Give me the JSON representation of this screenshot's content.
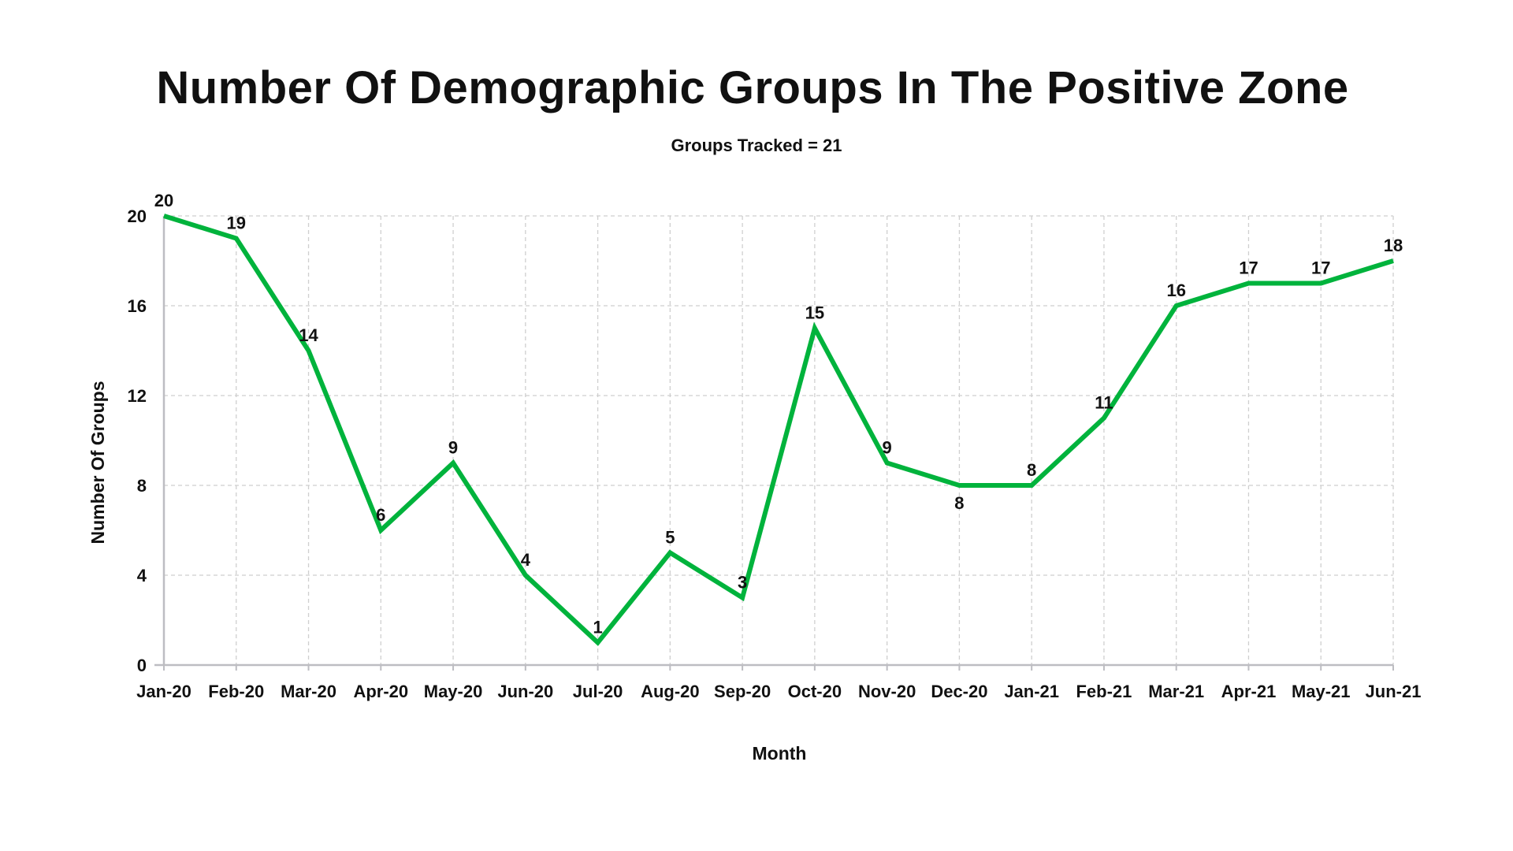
{
  "chart_data": {
    "type": "line",
    "title": "Number Of Demographic Groups In The Positive Zone",
    "subtitle": "Groups Tracked = 21",
    "xlabel": "Month",
    "ylabel": "Number Of Groups",
    "categories": [
      "Jan-20",
      "Feb-20",
      "Mar-20",
      "Apr-20",
      "May-20",
      "Jun-20",
      "Jul-20",
      "Aug-20",
      "Sep-20",
      "Oct-20",
      "Nov-20",
      "Dec-20",
      "Jan-21",
      "Feb-21",
      "Mar-21",
      "Apr-21",
      "May-21",
      "Jun-21"
    ],
    "series": [
      {
        "name": "Number Of Groups",
        "values": [
          20,
          19,
          14,
          6,
          9,
          4,
          1,
          5,
          3,
          15,
          9,
          8,
          8,
          11,
          16,
          17,
          17,
          18
        ],
        "color": "#00b33c"
      }
    ],
    "ylim": [
      0,
      20
    ],
    "yticks": [
      0,
      4,
      8,
      12,
      16,
      20
    ],
    "grid": true,
    "legend": "none"
  }
}
